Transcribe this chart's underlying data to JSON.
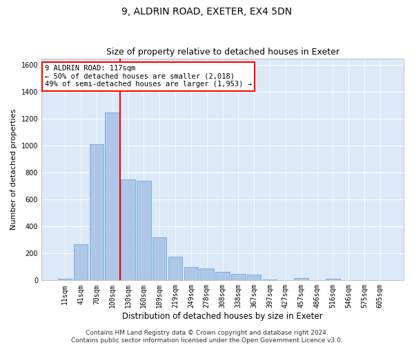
{
  "title1": "9, ALDRIN ROAD, EXETER, EX4 5DN",
  "title2": "Size of property relative to detached houses in Exeter",
  "xlabel": "Distribution of detached houses by size in Exeter",
  "ylabel": "Number of detached properties",
  "bar_labels": [
    "11sqm",
    "41sqm",
    "70sqm",
    "100sqm",
    "130sqm",
    "160sqm",
    "189sqm",
    "219sqm",
    "249sqm",
    "278sqm",
    "308sqm",
    "338sqm",
    "367sqm",
    "397sqm",
    "427sqm",
    "457sqm",
    "486sqm",
    "516sqm",
    "546sqm",
    "575sqm",
    "605sqm"
  ],
  "bar_values": [
    10,
    270,
    1010,
    1250,
    750,
    740,
    320,
    175,
    100,
    90,
    65,
    50,
    45,
    5,
    0,
    15,
    0,
    13,
    0,
    0,
    0
  ],
  "bar_color": "#aec6e8",
  "bar_edge_color": "#6aaed6",
  "vline_color": "red",
  "vline_x_idx": 3.5,
  "annotation_text": "9 ALDRIN ROAD: 117sqm\n← 50% of detached houses are smaller (2,018)\n49% of semi-detached houses are larger (1,953) →",
  "annotation_box_color": "white",
  "annotation_box_edge": "red",
  "ylim": [
    0,
    1650
  ],
  "yticks": [
    0,
    200,
    400,
    600,
    800,
    1000,
    1200,
    1400,
    1600
  ],
  "background_color": "#dce9f8",
  "footer": "Contains HM Land Registry data © Crown copyright and database right 2024.\nContains public sector information licensed under the Open Government Licence v3.0.",
  "title1_fontsize": 10,
  "title2_fontsize": 9,
  "xlabel_fontsize": 8.5,
  "ylabel_fontsize": 8,
  "tick_fontsize": 7,
  "footer_fontsize": 6.5,
  "annot_fontsize": 7.5
}
